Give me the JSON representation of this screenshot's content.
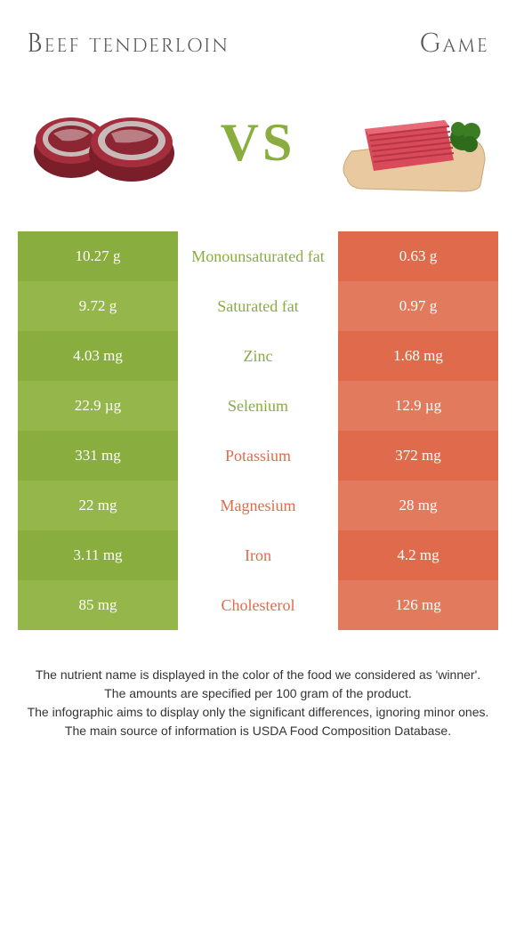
{
  "titles": {
    "left": "Beef tenderloin",
    "right": "Game"
  },
  "vs_label": "VS",
  "colors": {
    "green": "#8aad3f",
    "green_alt": "#95b64b",
    "orange": "#df6b4c",
    "orange_alt": "#e27a5d",
    "text": "#333333",
    "white": "#ffffff"
  },
  "rows": [
    {
      "left": "10.27 g",
      "label": "Monounsaturated fat",
      "right": "0.63 g",
      "winner": "left"
    },
    {
      "left": "9.72 g",
      "label": "Saturated fat",
      "right": "0.97 g",
      "winner": "left"
    },
    {
      "left": "4.03 mg",
      "label": "Zinc",
      "right": "1.68 mg",
      "winner": "left"
    },
    {
      "left": "22.9 µg",
      "label": "Selenium",
      "right": "12.9 µg",
      "winner": "left"
    },
    {
      "left": "331 mg",
      "label": "Potassium",
      "right": "372 mg",
      "winner": "right"
    },
    {
      "left": "22 mg",
      "label": "Magnesium",
      "right": "28 mg",
      "winner": "right"
    },
    {
      "left": "3.11 mg",
      "label": "Iron",
      "right": "4.2 mg",
      "winner": "right"
    },
    {
      "left": "85 mg",
      "label": "Cholesterol",
      "right": "126 mg",
      "winner": "right"
    }
  ],
  "footnotes": [
    "The nutrient name is displayed in the color of the food we considered as 'winner'.",
    "The amounts are specified per 100 gram of the product.",
    "The infographic aims to display only the significant differences, ignoring minor ones.",
    "The main source of information is USDA Food Composition Database."
  ]
}
